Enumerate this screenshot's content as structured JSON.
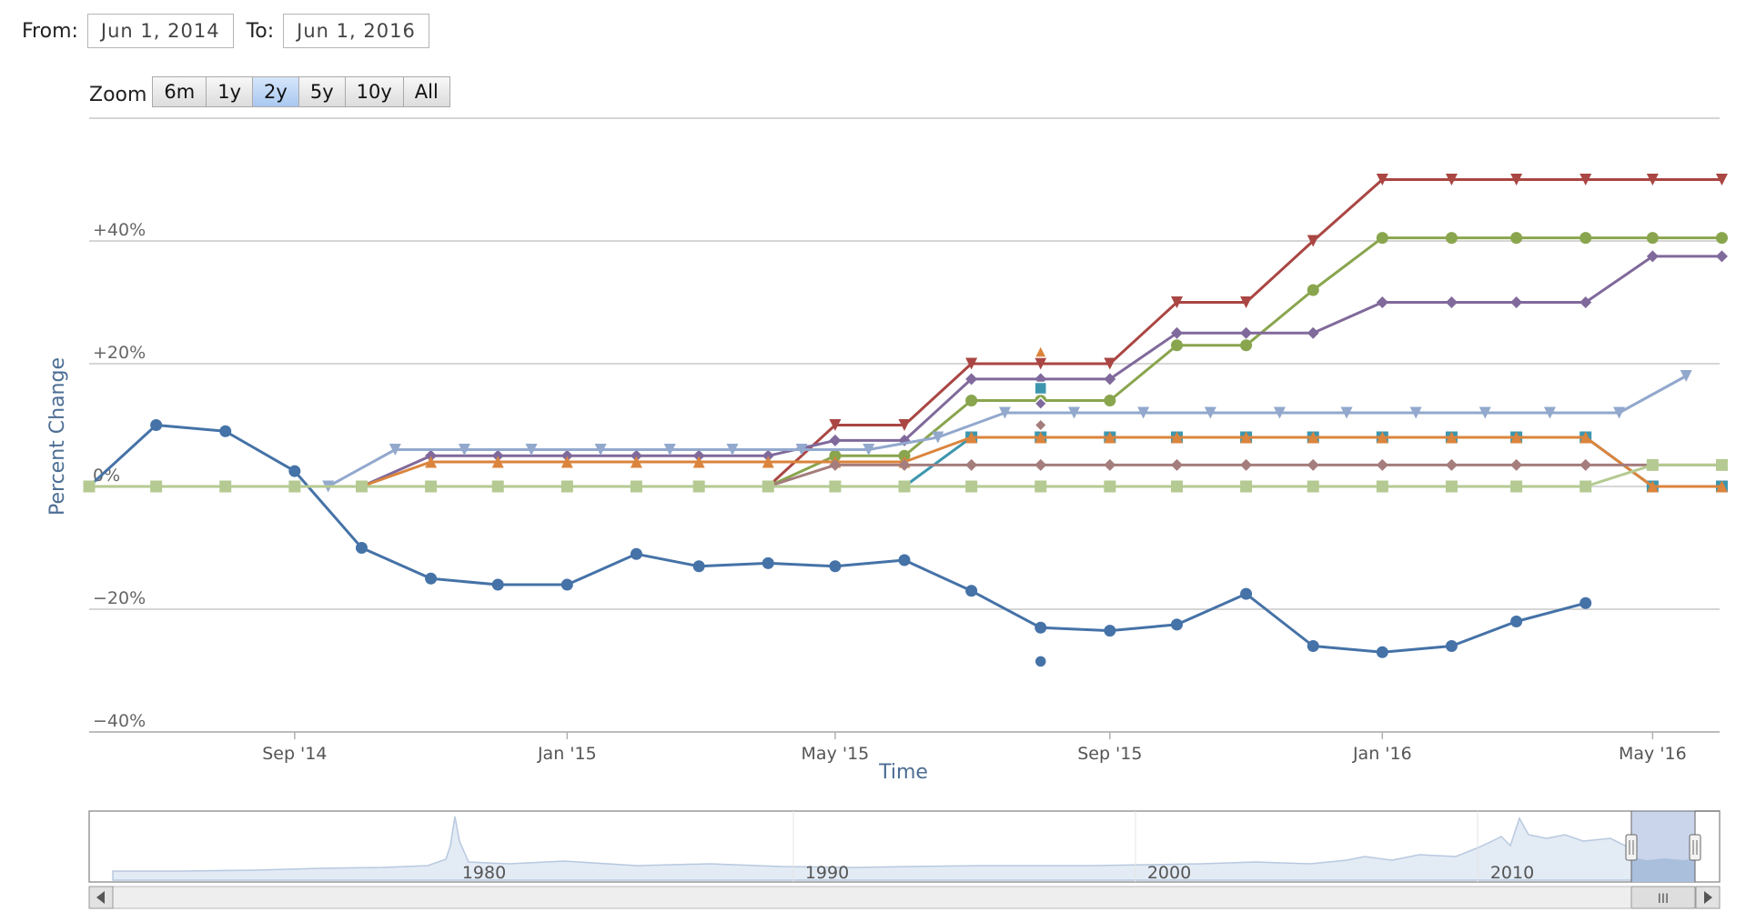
{
  "range_selector": {
    "from_label": "From:",
    "from_value": "Jun 1, 2014",
    "to_label": "To:",
    "to_value": "Jun 1, 2016",
    "zoom_label": "Zoom",
    "buttons": [
      "6m",
      "1y",
      "2y",
      "5y",
      "10y",
      "All"
    ],
    "active_button": "2y"
  },
  "navigator": {
    "tick_labels": [
      "1980",
      "1990",
      "2000",
      "2010"
    ],
    "scrollbar_grip": "III"
  },
  "chart_data": {
    "type": "line",
    "title": "",
    "xlabel": "Time",
    "ylabel": "Percent Change",
    "xlim": [
      "2014-06-01",
      "2016-05-31"
    ],
    "ylim": [
      -40,
      60
    ],
    "y_ticks": [
      -40,
      -20,
      0,
      20,
      40
    ],
    "y_tick_labels": [
      "−40%",
      "−20%",
      "0%",
      "+20%",
      "+40%"
    ],
    "x_ticks": [
      "2014-09-01",
      "2015-01-01",
      "2015-05-01",
      "2015-09-01",
      "2016-01-01",
      "2016-05-01"
    ],
    "x_tick_labels": [
      "Sep '14",
      "Jan '15",
      "May '15",
      "Sep '15",
      "Jan '16",
      "May '16"
    ],
    "grid": true,
    "legend": "none",
    "series": [
      {
        "color": "#4572a7",
        "marker": "circle",
        "points": [
          [
            "2014-06-01",
            0
          ],
          [
            "2014-07-01",
            10
          ],
          [
            "2014-08-01",
            9
          ],
          [
            "2014-09-01",
            2.5
          ],
          [
            "2014-10-01",
            -10
          ],
          [
            "2014-11-01",
            -15
          ],
          [
            "2014-12-01",
            -16
          ],
          [
            "2015-01-01",
            -16
          ],
          [
            "2015-02-01",
            -11
          ],
          [
            "2015-03-01",
            -13
          ],
          [
            "2015-04-01",
            -12.5
          ],
          [
            "2015-05-01",
            -13
          ],
          [
            "2015-06-01",
            -12
          ],
          [
            "2015-07-01",
            -17
          ],
          [
            "2015-08-01",
            -23
          ],
          [
            "2015-09-01",
            -23.5
          ],
          [
            "2015-10-01",
            -22.5
          ],
          [
            "2015-11-01",
            -17.5
          ],
          [
            "2015-12-01",
            -26
          ],
          [
            "2016-01-01",
            -27
          ],
          [
            "2016-02-01",
            -26
          ],
          [
            "2016-03-01",
            -22
          ],
          [
            "2016-04-01",
            -19
          ]
        ],
        "extra_points": [
          [
            "2015-08-01",
            -28.5
          ]
        ]
      },
      {
        "color": "#aa4643",
        "marker": "triangle-down",
        "points": [
          [
            "2015-04-01",
            0
          ],
          [
            "2015-05-01",
            10
          ],
          [
            "2015-06-01",
            10
          ],
          [
            "2015-07-01",
            20
          ],
          [
            "2015-08-01",
            20
          ],
          [
            "2015-09-01",
            20
          ],
          [
            "2015-10-01",
            30
          ],
          [
            "2015-11-01",
            30
          ],
          [
            "2015-12-01",
            40
          ],
          [
            "2016-01-01",
            50
          ],
          [
            "2016-02-01",
            50
          ],
          [
            "2016-03-01",
            50
          ],
          [
            "2016-04-01",
            50
          ],
          [
            "2016-05-01",
            50
          ],
          [
            "2016-06-01",
            50
          ]
        ]
      },
      {
        "color": "#89a54e",
        "marker": "circle",
        "points": [
          [
            "2014-06-01",
            0
          ],
          [
            "2015-04-01",
            0
          ],
          [
            "2015-05-01",
            5
          ],
          [
            "2015-06-01",
            5
          ],
          [
            "2015-07-01",
            14
          ],
          [
            "2015-08-01",
            14
          ],
          [
            "2015-09-01",
            14
          ],
          [
            "2015-10-01",
            23
          ],
          [
            "2015-11-01",
            23
          ],
          [
            "2015-12-01",
            32
          ],
          [
            "2016-01-01",
            40.5
          ],
          [
            "2016-02-01",
            40.5
          ],
          [
            "2016-03-01",
            40.5
          ],
          [
            "2016-04-01",
            40.5
          ],
          [
            "2016-05-01",
            40.5
          ],
          [
            "2016-06-01",
            40.5
          ]
        ]
      },
      {
        "color": "#80699b",
        "marker": "diamond",
        "points": [
          [
            "2014-10-01",
            0
          ],
          [
            "2014-11-01",
            5
          ],
          [
            "2014-12-01",
            5
          ],
          [
            "2015-01-01",
            5
          ],
          [
            "2015-02-01",
            5
          ],
          [
            "2015-03-01",
            5
          ],
          [
            "2015-04-01",
            5
          ],
          [
            "2015-05-01",
            7.5
          ],
          [
            "2015-06-01",
            7.5
          ],
          [
            "2015-07-01",
            17.5
          ],
          [
            "2015-08-01",
            17.5
          ],
          [
            "2015-09-01",
            17.5
          ],
          [
            "2015-10-01",
            25
          ],
          [
            "2015-11-01",
            25
          ],
          [
            "2015-12-01",
            25
          ],
          [
            "2016-01-01",
            30
          ],
          [
            "2016-02-01",
            30
          ],
          [
            "2016-03-01",
            30
          ],
          [
            "2016-04-01",
            30
          ],
          [
            "2016-05-01",
            37.5
          ],
          [
            "2016-06-01",
            37.5
          ]
        ],
        "extra_points": [
          [
            "2015-08-01",
            13.5
          ]
        ]
      },
      {
        "color": "#3d96ae",
        "marker": "square",
        "points": [
          [
            "2014-06-01",
            0
          ],
          [
            "2015-06-01",
            0
          ],
          [
            "2015-07-01",
            8
          ],
          [
            "2015-08-01",
            8
          ],
          [
            "2015-09-01",
            8
          ],
          [
            "2015-10-01",
            8
          ],
          [
            "2015-11-01",
            8
          ],
          [
            "2015-12-01",
            8
          ],
          [
            "2016-01-01",
            8
          ],
          [
            "2016-02-01",
            8
          ],
          [
            "2016-03-01",
            8
          ],
          [
            "2016-04-01",
            8
          ],
          [
            "2016-05-01",
            0
          ],
          [
            "2016-06-01",
            0
          ]
        ],
        "extra_points": [
          [
            "2015-08-01",
            16
          ]
        ]
      },
      {
        "color": "#db843d",
        "marker": "triangle",
        "points": [
          [
            "2014-10-01",
            0
          ],
          [
            "2014-11-01",
            4
          ],
          [
            "2014-12-01",
            4
          ],
          [
            "2015-01-01",
            4
          ],
          [
            "2015-02-01",
            4
          ],
          [
            "2015-03-01",
            4
          ],
          [
            "2015-04-01",
            4
          ],
          [
            "2015-05-01",
            4
          ],
          [
            "2015-06-01",
            4
          ],
          [
            "2015-07-01",
            8
          ],
          [
            "2015-08-01",
            8
          ],
          [
            "2015-09-01",
            8
          ],
          [
            "2015-10-01",
            8
          ],
          [
            "2015-11-01",
            8
          ],
          [
            "2015-12-01",
            8
          ],
          [
            "2016-01-01",
            8
          ],
          [
            "2016-02-01",
            8
          ],
          [
            "2016-03-01",
            8
          ],
          [
            "2016-04-01",
            8
          ],
          [
            "2016-05-01",
            0
          ],
          [
            "2016-06-01",
            0
          ]
        ],
        "extra_points": [
          [
            "2015-08-01",
            22
          ]
        ]
      },
      {
        "color": "#92a8cd",
        "marker": "triangle-down",
        "points": [
          [
            "2014-06-01",
            0
          ],
          [
            "2014-07-01",
            0
          ],
          [
            "2014-08-01",
            0
          ],
          [
            "2014-09-01",
            0
          ],
          [
            "2014-09-16",
            0
          ],
          [
            "2014-10-16",
            6
          ],
          [
            "2014-11-16",
            6
          ],
          [
            "2014-12-16",
            6
          ],
          [
            "2015-01-16",
            6
          ],
          [
            "2015-02-16",
            6
          ],
          [
            "2015-03-16",
            6
          ],
          [
            "2015-04-16",
            6
          ],
          [
            "2015-05-16",
            6
          ],
          [
            "2015-06-16",
            8
          ],
          [
            "2015-07-16",
            12
          ],
          [
            "2015-08-16",
            12
          ],
          [
            "2015-09-16",
            12
          ],
          [
            "2015-10-16",
            12
          ],
          [
            "2015-11-16",
            12
          ],
          [
            "2015-12-16",
            12
          ],
          [
            "2016-01-16",
            12
          ],
          [
            "2016-02-16",
            12
          ],
          [
            "2016-03-16",
            12
          ],
          [
            "2016-04-16",
            12
          ],
          [
            "2016-05-16",
            18
          ]
        ]
      },
      {
        "color": "#a47d7c",
        "marker": "diamond",
        "points": [
          [
            "2014-06-01",
            0
          ],
          [
            "2015-04-01",
            0
          ],
          [
            "2015-05-01",
            3.5
          ],
          [
            "2015-06-01",
            3.5
          ],
          [
            "2015-07-01",
            3.5
          ],
          [
            "2015-08-01",
            3.5
          ],
          [
            "2015-09-01",
            3.5
          ],
          [
            "2015-10-01",
            3.5
          ],
          [
            "2015-11-01",
            3.5
          ],
          [
            "2015-12-01",
            3.5
          ],
          [
            "2016-01-01",
            3.5
          ],
          [
            "2016-02-01",
            3.5
          ],
          [
            "2016-03-01",
            3.5
          ],
          [
            "2016-04-01",
            3.5
          ],
          [
            "2016-05-01",
            3.5
          ],
          [
            "2016-06-01",
            3.5
          ]
        ],
        "extra_points": [
          [
            "2015-08-01",
            10
          ]
        ]
      },
      {
        "color": "#b5ca92",
        "marker": "square",
        "points": [
          [
            "2014-06-01",
            0
          ],
          [
            "2014-07-01",
            0
          ],
          [
            "2014-08-01",
            0
          ],
          [
            "2014-09-01",
            0
          ],
          [
            "2014-10-01",
            0
          ],
          [
            "2014-11-01",
            0
          ],
          [
            "2014-12-01",
            0
          ],
          [
            "2015-01-01",
            0
          ],
          [
            "2015-02-01",
            0
          ],
          [
            "2015-03-01",
            0
          ],
          [
            "2015-04-01",
            0
          ],
          [
            "2015-05-01",
            0
          ],
          [
            "2015-06-01",
            0
          ],
          [
            "2015-07-01",
            0
          ],
          [
            "2015-08-01",
            0
          ],
          [
            "2015-09-01",
            0
          ],
          [
            "2015-10-01",
            0
          ],
          [
            "2015-11-01",
            0
          ],
          [
            "2015-12-01",
            0
          ],
          [
            "2016-01-01",
            0
          ],
          [
            "2016-02-01",
            0
          ],
          [
            "2016-03-01",
            0
          ],
          [
            "2016-04-01",
            0
          ],
          [
            "2016-05-01",
            3.5
          ],
          [
            "2016-06-01",
            3.5
          ]
        ]
      }
    ]
  }
}
